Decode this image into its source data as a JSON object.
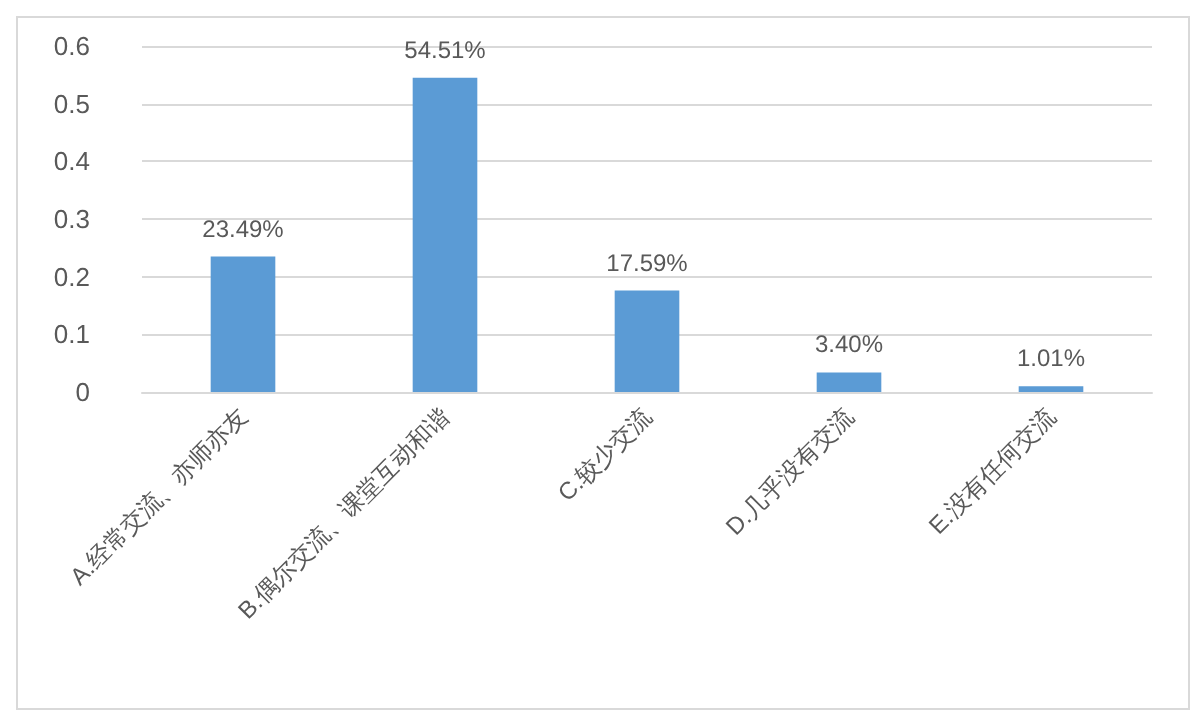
{
  "chart_data": {
    "type": "bar",
    "categories": [
      "A.经常交流、亦师亦友",
      "B.偶尔交流、课堂互动和谐",
      "C.较少交流",
      "D.几乎没有交流",
      "E.没有任何交流"
    ],
    "values": [
      0.2349,
      0.5451,
      0.1759,
      0.034,
      0.0101
    ],
    "value_labels": [
      "23.49%",
      "54.51%",
      "17.59%",
      "3.40%",
      "1.01%"
    ],
    "color": "#5b9bd5",
    "ylim": [
      0,
      0.6
    ],
    "yticks": [
      0,
      0.1,
      0.2,
      0.3,
      0.4,
      0.5,
      0.6
    ],
    "grid": "y"
  }
}
